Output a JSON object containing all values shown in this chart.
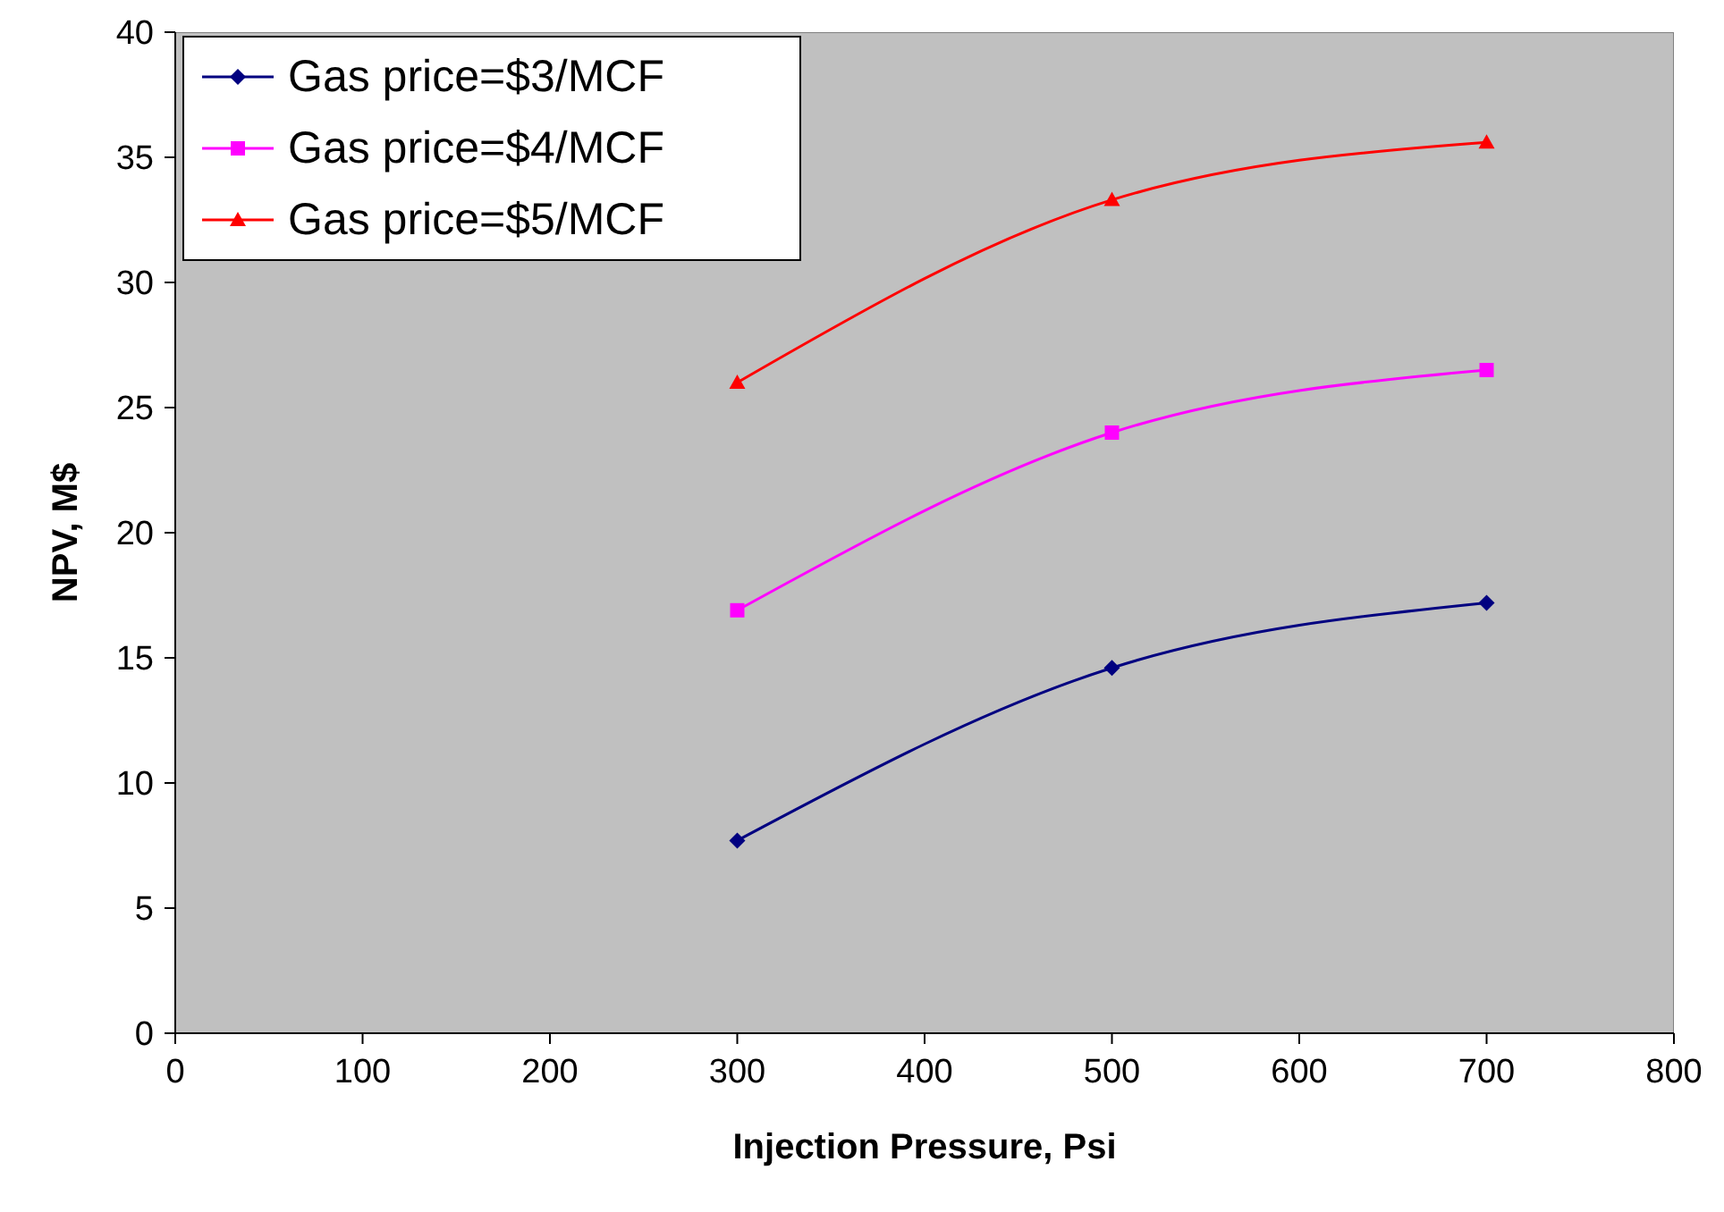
{
  "chart_data": {
    "type": "line",
    "xlabel": "Injection Pressure, Psi",
    "ylabel": "NPV, M$",
    "x": [
      300,
      500,
      700
    ],
    "series": [
      {
        "name": "Gas price=$3/MCF",
        "color": "#000080",
        "values": [
          7.7,
          14.6,
          17.2
        ],
        "marker": "diamond"
      },
      {
        "name": "Gas price=$4/MCF",
        "color": "#ff00ff",
        "values": [
          16.9,
          24.0,
          26.5
        ],
        "marker": "square"
      },
      {
        "name": "Gas price=$5/MCF",
        "color": "#ff0000",
        "values": [
          26.0,
          33.3,
          35.6
        ],
        "marker": "triangle"
      }
    ],
    "xlim": [
      0,
      800
    ],
    "xticks": [
      0,
      100,
      200,
      300,
      400,
      500,
      600,
      700,
      800
    ],
    "ylim": [
      0,
      40
    ],
    "yticks": [
      0,
      5,
      10,
      15,
      20,
      25,
      30,
      35,
      40
    ],
    "grid": false,
    "legend": "top left",
    "line_style": "solid"
  }
}
